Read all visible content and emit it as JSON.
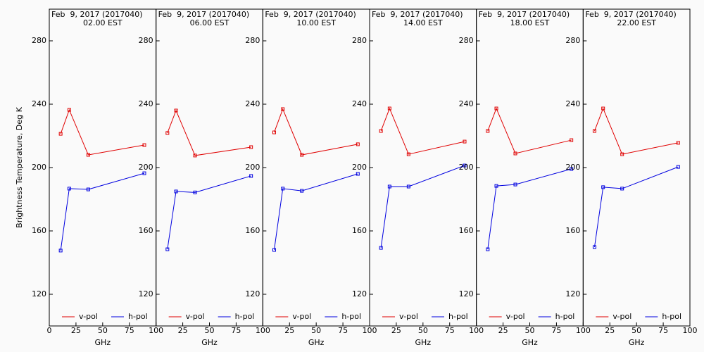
{
  "chart_data": [
    {
      "type": "line",
      "title": "Feb  9, 2017 (2017040)",
      "subtitle": "02.00 EST",
      "ylabel": "Brightness Temperature, Deg K",
      "xlabel": "GHz",
      "x": [
        10.65,
        18.7,
        36.5,
        89.0
      ],
      "xlim": [
        0,
        100
      ],
      "xticks": [
        0,
        25,
        50,
        75,
        100
      ],
      "ylim": [
        100,
        300
      ],
      "yticks": [
        120,
        160,
        200,
        240,
        280
      ],
      "series": [
        {
          "name": "v-pol",
          "color": "#e00000",
          "values": [
            221.3,
            236.4,
            208.0,
            214.2
          ]
        },
        {
          "name": "h-pol",
          "color": "#0000e0",
          "values": [
            147.6,
            186.7,
            186.2,
            196.4
          ]
        }
      ]
    },
    {
      "type": "line",
      "title": "Feb  9, 2017 (2017040)",
      "subtitle": "06.00 EST",
      "xlabel": "GHz",
      "x": [
        10.65,
        18.7,
        36.5,
        89.0
      ],
      "xlim": [
        0,
        100
      ],
      "xticks": [
        25,
        50,
        75,
        100
      ],
      "ylim": [
        100,
        300
      ],
      "yticks": [
        120,
        160,
        200,
        240,
        280
      ],
      "series": [
        {
          "name": "v-pol",
          "color": "#e00000",
          "values": [
            221.8,
            236.0,
            207.6,
            212.9
          ]
        },
        {
          "name": "h-pol",
          "color": "#0000e0",
          "values": [
            148.4,
            184.9,
            184.3,
            194.7
          ]
        }
      ]
    },
    {
      "type": "line",
      "title": "Feb  9, 2017 (2017040)",
      "subtitle": "10.00 EST",
      "xlabel": "GHz",
      "x": [
        10.65,
        18.7,
        36.5,
        89.0
      ],
      "xlim": [
        0,
        100
      ],
      "xticks": [
        25,
        50,
        75,
        100
      ],
      "ylim": [
        100,
        300
      ],
      "yticks": [
        120,
        160,
        200,
        240,
        280
      ],
      "series": [
        {
          "name": "v-pol",
          "color": "#e00000",
          "values": [
            222.2,
            236.9,
            208.0,
            214.7
          ]
        },
        {
          "name": "h-pol",
          "color": "#0000e0",
          "values": [
            148.0,
            186.7,
            185.3,
            196.0
          ]
        }
      ]
    },
    {
      "type": "line",
      "title": "Feb  9, 2017 (2017040)",
      "subtitle": "14.00 EST",
      "xlabel": "GHz",
      "x": [
        10.65,
        18.7,
        36.5,
        89.0
      ],
      "xlim": [
        0,
        100
      ],
      "xticks": [
        25,
        50,
        75,
        100
      ],
      "ylim": [
        100,
        300
      ],
      "yticks": [
        120,
        160,
        200,
        240,
        280
      ],
      "series": [
        {
          "name": "v-pol",
          "color": "#e00000",
          "values": [
            223.1,
            237.3,
            208.4,
            216.4
          ]
        },
        {
          "name": "h-pol",
          "color": "#0000e0",
          "values": [
            149.3,
            188.0,
            188.0,
            201.3
          ]
        }
      ]
    },
    {
      "type": "line",
      "title": "Feb  9, 2017 (2017040)",
      "subtitle": "18.00 EST",
      "xlabel": "GHz",
      "x": [
        10.65,
        18.7,
        36.5,
        89.0
      ],
      "xlim": [
        0,
        100
      ],
      "xticks": [
        25,
        50,
        75,
        100
      ],
      "ylim": [
        100,
        300
      ],
      "yticks": [
        120,
        160,
        200,
        240,
        280
      ],
      "series": [
        {
          "name": "v-pol",
          "color": "#e00000",
          "values": [
            223.1,
            237.3,
            208.9,
            217.3
          ]
        },
        {
          "name": "h-pol",
          "color": "#0000e0",
          "values": [
            148.4,
            188.4,
            189.3,
            199.1
          ]
        }
      ]
    },
    {
      "type": "line",
      "title": "Feb  9, 2017 (2017040)",
      "subtitle": "22.00 EST",
      "xlabel": "GHz",
      "x": [
        10.65,
        18.7,
        36.5,
        89.0
      ],
      "xlim": [
        0,
        100
      ],
      "xticks": [
        25,
        50,
        75,
        100
      ],
      "ylim": [
        100,
        300
      ],
      "yticks": [
        120,
        160,
        200,
        240,
        280
      ],
      "series": [
        {
          "name": "v-pol",
          "color": "#e00000",
          "values": [
            223.1,
            237.3,
            208.4,
            215.6
          ]
        },
        {
          "name": "h-pol",
          "color": "#0000e0",
          "values": [
            149.8,
            187.6,
            186.7,
            200.4
          ]
        }
      ]
    }
  ]
}
